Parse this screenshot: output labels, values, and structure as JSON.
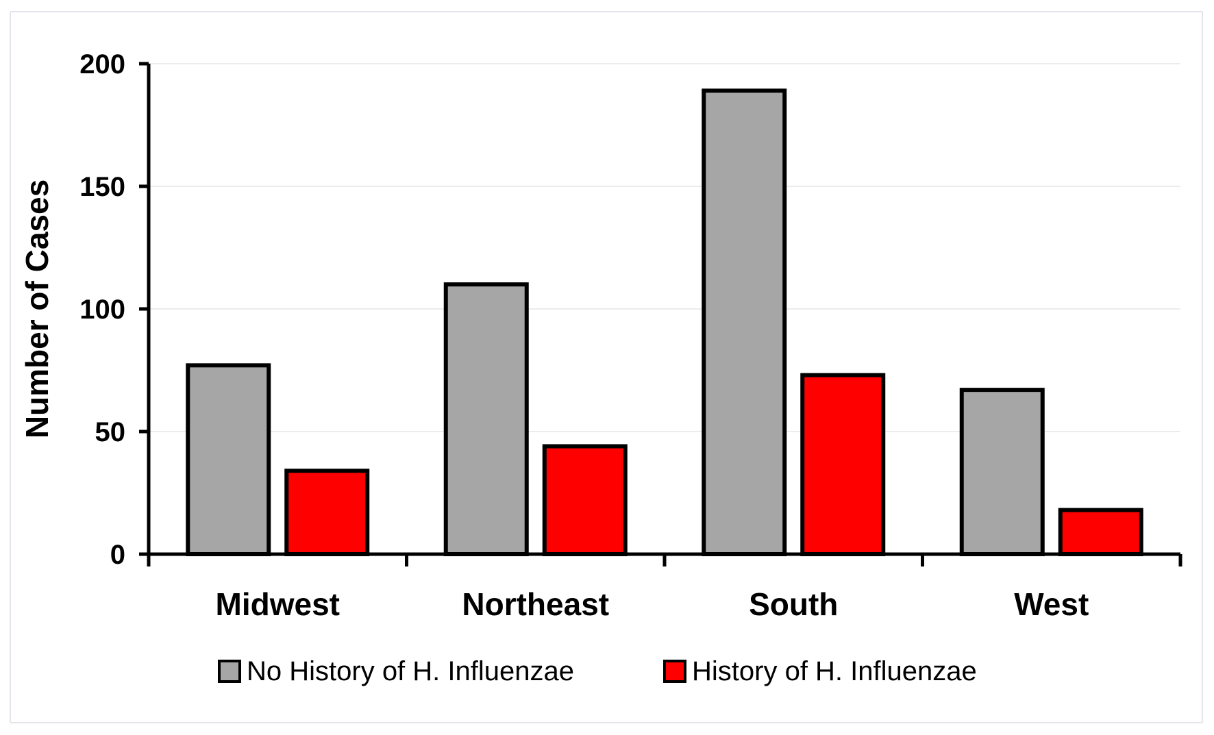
{
  "chart_data": {
    "type": "bar",
    "title": "",
    "xlabel": "",
    "ylabel": "Number of Cases",
    "ylim": [
      0,
      200
    ],
    "yticks": [
      0,
      50,
      100,
      150,
      200
    ],
    "grid": true,
    "legend_position": "bottom",
    "categories": [
      "Midwest",
      "Northeast",
      "South",
      "West"
    ],
    "series": [
      {
        "name": "No History of H. Influenzae",
        "color": "#a6a6a6",
        "values": [
          77,
          110,
          189,
          67
        ]
      },
      {
        "name": "History of H. Influenzae",
        "color": "#ff0000",
        "values": [
          34,
          44,
          73,
          18
        ]
      }
    ]
  }
}
